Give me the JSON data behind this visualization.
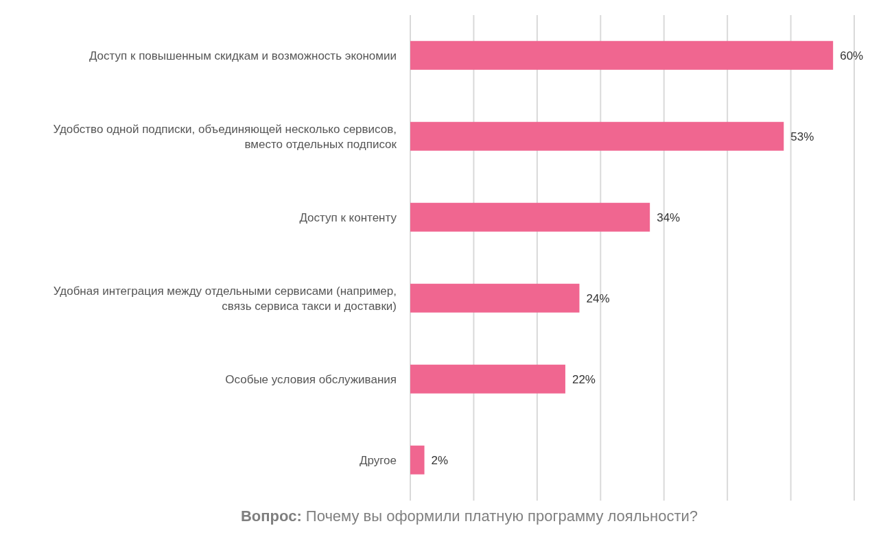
{
  "chart_data": {
    "type": "bar",
    "orientation": "horizontal",
    "categories": [
      "Доступ к повышенным скидкам и возможность экономии",
      "Удобство одной подписки, объединяющей несколько сервисов, вместо отдельных подписок",
      "Доступ к контенту",
      "Удобная интеграция между отдельными сервисами (например, связь сервиса такси и доставки)",
      "Особые условия обслуживания",
      "Другое"
    ],
    "values": [
      60,
      53,
      34,
      24,
      22,
      2
    ],
    "value_labels": [
      "60%",
      "53%",
      "34%",
      "24%",
      "22%",
      "2%"
    ],
    "color": "#f06690",
    "grid": "x",
    "tick_labels": "y",
    "annotations": [
      "Вопрос: Почему вы оформили платную программу лояльности?"
    ]
  }
}
